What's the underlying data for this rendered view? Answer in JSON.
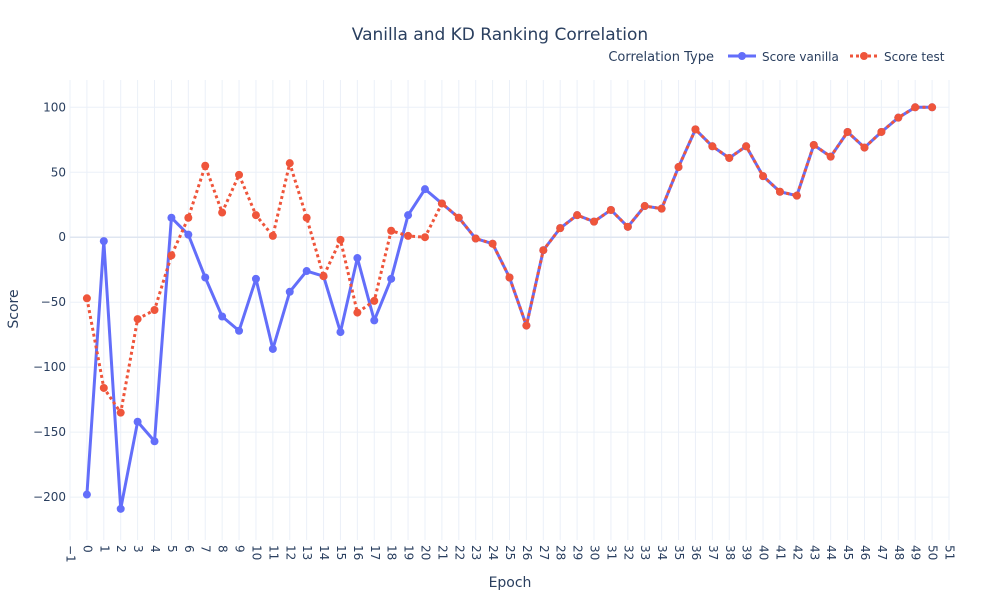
{
  "chart_data": {
    "type": "line",
    "title": "Vanilla and KD Ranking Correlation",
    "xlabel": "Epoch",
    "ylabel": "Score",
    "xlim": [
      -1,
      51
    ],
    "ylim": [
      -233,
      121
    ],
    "x_ticks": [
      -1,
      0,
      1,
      2,
      3,
      4,
      5,
      6,
      7,
      8,
      9,
      10,
      11,
      12,
      13,
      14,
      15,
      16,
      17,
      18,
      19,
      20,
      21,
      22,
      23,
      24,
      25,
      26,
      27,
      28,
      29,
      30,
      31,
      32,
      33,
      34,
      35,
      36,
      37,
      38,
      39,
      40,
      41,
      42,
      43,
      44,
      45,
      46,
      47,
      48,
      49,
      50,
      51
    ],
    "x_tick_labels": [
      "−1",
      "0",
      "1",
      "2",
      "3",
      "4",
      "5",
      "6",
      "7",
      "8",
      "9",
      "10",
      "11",
      "12",
      "13",
      "14",
      "15",
      "16",
      "17",
      "18",
      "19",
      "20",
      "21",
      "22",
      "23",
      "24",
      "25",
      "26",
      "27",
      "28",
      "29",
      "30",
      "31",
      "32",
      "33",
      "34",
      "35",
      "36",
      "37",
      "38",
      "39",
      "40",
      "41",
      "42",
      "43",
      "44",
      "45",
      "46",
      "47",
      "48",
      "49",
      "50",
      "51"
    ],
    "y_ticks": [
      -200,
      -150,
      -100,
      -50,
      0,
      50,
      100
    ],
    "y_tick_labels": [
      "−200",
      "−150",
      "−100",
      "−50",
      "0",
      "50",
      "100"
    ],
    "grid": true,
    "legend": {
      "title": "Correlation Type",
      "placement": "top-right",
      "entries": [
        "Score vanilla",
        "Score test"
      ]
    },
    "x": [
      0,
      1,
      2,
      3,
      4,
      5,
      6,
      7,
      8,
      9,
      10,
      11,
      12,
      13,
      14,
      15,
      16,
      17,
      18,
      19,
      20,
      21,
      22,
      23,
      24,
      25,
      26,
      27,
      28,
      29,
      30,
      31,
      32,
      33,
      34,
      35,
      36,
      37,
      38,
      39,
      40,
      41,
      42,
      43,
      44,
      45,
      46,
      47,
      48,
      49,
      50
    ],
    "series": [
      {
        "name": "Score vanilla",
        "color": "#636efa",
        "dash": "solid",
        "values": [
          -198,
          -3,
          -209,
          -142,
          -157,
          15,
          2,
          -31,
          -61,
          -72,
          -32,
          -86,
          -42,
          -26,
          -30,
          -73,
          -16,
          -64,
          -32,
          17,
          37,
          26,
          15,
          -1,
          -5,
          -31,
          -68,
          -10,
          7,
          17,
          12,
          21,
          8,
          24,
          22,
          54,
          83,
          70,
          61,
          70,
          47,
          35,
          32,
          71,
          62,
          81,
          69,
          81,
          92,
          100,
          100
        ]
      },
      {
        "name": "Score test",
        "color": "#ef553b",
        "dash": "dot",
        "values": [
          -47,
          -116,
          -135,
          -63,
          -56,
          -14,
          15,
          55,
          19,
          48,
          17,
          1,
          57,
          15,
          -30,
          -2,
          -58,
          -49,
          5,
          1,
          0,
          26,
          15,
          -1,
          -5,
          -31,
          -68,
          -10,
          7,
          17,
          12,
          21,
          8,
          24,
          22,
          54,
          83,
          70,
          61,
          70,
          47,
          35,
          32,
          71,
          62,
          81,
          69,
          81,
          92,
          100,
          100
        ]
      }
    ]
  }
}
